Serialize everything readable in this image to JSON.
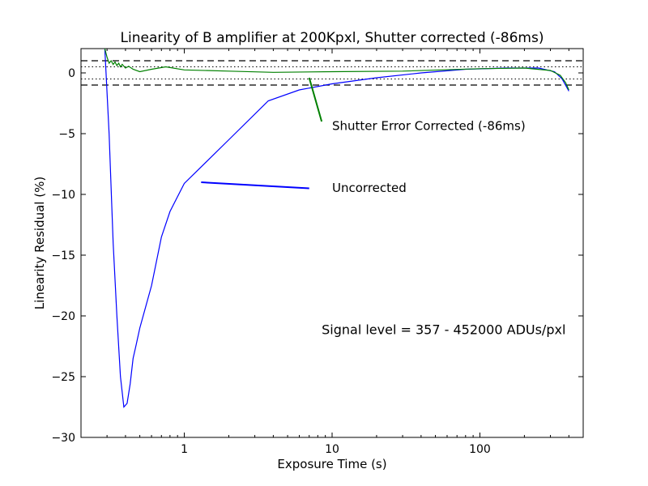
{
  "chart_data": {
    "type": "line",
    "title": "Linearity of B amplifier at 200Kpxl, Shutter corrected (-86ms)",
    "xlabel": "Exposure Time (s)",
    "ylabel": "Linearity Residual (%)",
    "xscale": "log",
    "xlim": [
      0.2,
      500
    ],
    "ylim": [
      -30,
      2
    ],
    "x_ticks": [
      1,
      10,
      100
    ],
    "x_tick_labels": [
      "1",
      "10",
      "100"
    ],
    "y_ticks": [
      0,
      -5,
      -10,
      -15,
      -20,
      -25,
      -30
    ],
    "y_tick_labels": [
      "0",
      "−5",
      "−10",
      "−15",
      "−20",
      "−25",
      "−30"
    ],
    "grid": false,
    "reference_lines": [
      {
        "y": 1.0,
        "style": "dashed"
      },
      {
        "y": -1.0,
        "style": "dashed"
      },
      {
        "y": 0.5,
        "style": "dotted"
      },
      {
        "y": -0.5,
        "style": "dotted"
      }
    ],
    "series": [
      {
        "label": "Uncorrected",
        "color": "#0000ff",
        "points": [
          [
            0.29,
            2.0
          ],
          [
            0.31,
            -5.0
          ],
          [
            0.33,
            -14.0
          ],
          [
            0.35,
            -20.0
          ],
          [
            0.37,
            -25.0
          ],
          [
            0.39,
            -27.5
          ],
          [
            0.41,
            -27.2
          ],
          [
            0.43,
            -25.6
          ],
          [
            0.45,
            -23.5
          ],
          [
            0.47,
            -22.5
          ],
          [
            0.5,
            -21.0
          ],
          [
            0.6,
            -17.5
          ],
          [
            0.7,
            -13.5
          ],
          [
            0.8,
            -11.4
          ],
          [
            1.0,
            -9.1
          ],
          [
            2.0,
            -5.5
          ],
          [
            3.7,
            -2.3
          ],
          [
            6.0,
            -1.4
          ],
          [
            10.0,
            -0.9
          ],
          [
            20.0,
            -0.4
          ],
          [
            40.0,
            0.0
          ],
          [
            80.0,
            0.3
          ],
          [
            150.0,
            0.4
          ],
          [
            250.0,
            0.4
          ],
          [
            320.0,
            0.1
          ],
          [
            360.0,
            -0.5
          ],
          [
            400.0,
            -1.5
          ]
        ]
      },
      {
        "label": "Shutter Error Corrected (-86ms)",
        "color": "#008000",
        "points": [
          [
            0.29,
            2.0
          ],
          [
            0.3,
            1.3
          ],
          [
            0.31,
            0.8
          ],
          [
            0.32,
            1.0
          ],
          [
            0.33,
            0.7
          ],
          [
            0.34,
            0.9
          ],
          [
            0.35,
            0.6
          ],
          [
            0.36,
            0.8
          ],
          [
            0.37,
            0.5
          ],
          [
            0.38,
            0.7
          ],
          [
            0.4,
            0.4
          ],
          [
            0.42,
            0.55
          ],
          [
            0.45,
            0.3
          ],
          [
            0.5,
            0.1
          ],
          [
            0.6,
            0.3
          ],
          [
            0.75,
            0.5
          ],
          [
            1.0,
            0.25
          ],
          [
            2.0,
            0.15
          ],
          [
            4.0,
            0.05
          ],
          [
            10.0,
            0.1
          ],
          [
            30.0,
            0.15
          ],
          [
            100.0,
            0.35
          ],
          [
            200.0,
            0.4
          ],
          [
            300.0,
            0.2
          ],
          [
            350.0,
            -0.2
          ],
          [
            380.0,
            -0.8
          ],
          [
            400.0,
            -1.4
          ]
        ]
      }
    ],
    "annotations": [
      {
        "text": "Uncorrected",
        "color": "#0000ff",
        "x": 10.0,
        "y": -9.8,
        "arrow_from": [
          7.0,
          -9.5
        ],
        "arrow_to": [
          1.3,
          -9.0
        ]
      },
      {
        "text": "Shutter Error Corrected (-86ms)",
        "color": "#008000",
        "x": 10.0,
        "y": -4.7,
        "arrow_from": [
          8.5,
          -4.0
        ],
        "arrow_to": [
          7.0,
          -0.4
        ]
      },
      {
        "text": "Signal level = 357 - 452000 ADUs/pxl",
        "color": "#000000",
        "x": 8.5,
        "y": -21.5
      }
    ]
  }
}
